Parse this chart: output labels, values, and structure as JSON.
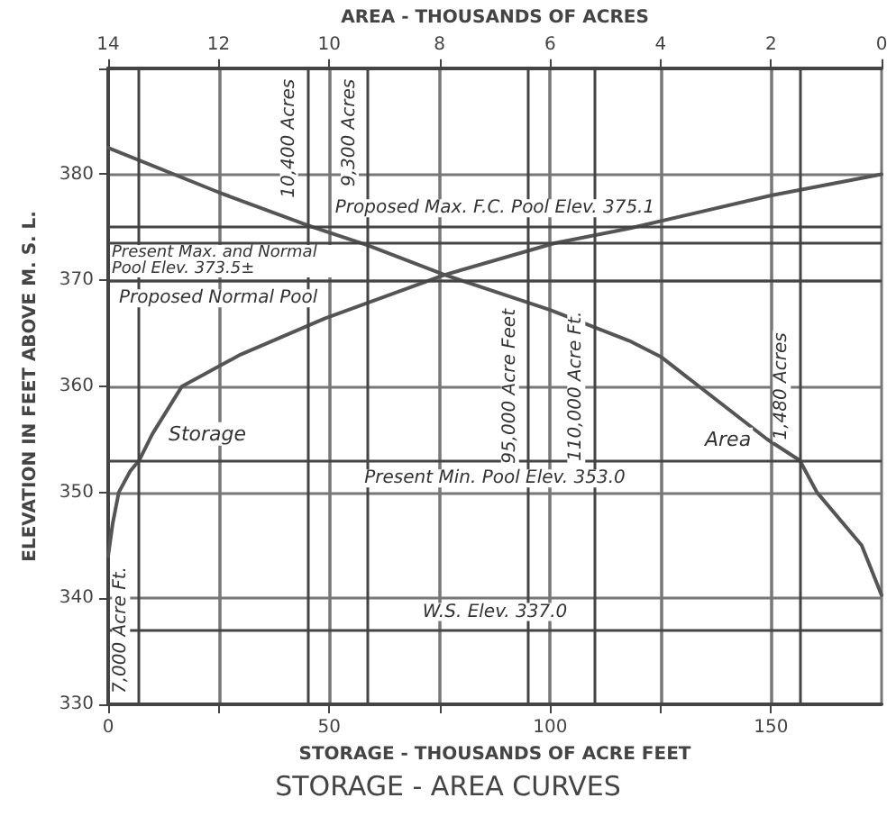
{
  "chart_data": {
    "type": "line",
    "title": "STORAGE - AREA CURVES",
    "xlabel": "STORAGE - THOUSANDS OF ACRE FEET",
    "x2label": "AREA - THOUSANDS OF ACRES",
    "ylabel": "ELEVATION IN FEET ABOVE M. S. L.",
    "series": [
      {
        "name": "Storage",
        "color": "#555555",
        "x": [
          0,
          1,
          2.4,
          5,
          7,
          10,
          16.7,
          30,
          49,
          76,
          101,
          118,
          150,
          175
        ],
        "values": [
          344,
          347,
          350,
          352,
          353,
          355.5,
          360,
          363,
          366.4,
          370.5,
          373.5,
          374.9,
          378,
          380
        ]
      },
      {
        "name": "Area",
        "color": "#555555",
        "axis": "x2",
        "x": [
          14,
          12,
          10.4,
          9.3,
          7.9,
          6,
          4.57,
          4,
          2.07,
          1.48,
          1.17,
          0.36,
          0
        ],
        "values": [
          382.5,
          378.3,
          375.2,
          373.3,
          370.5,
          367.2,
          364.3,
          362.8,
          355,
          353,
          350,
          345,
          340.3
        ]
      }
    ],
    "xlim": [
      0,
      175
    ],
    "xticks": [
      0,
      {
        "value": 25,
        "label": null
      },
      50,
      {
        "value": 75,
        "label": null
      },
      100,
      {
        "value": 125,
        "label": null
      },
      150
    ],
    "x2lim": [
      14,
      0
    ],
    "x2ticks": [
      14,
      12,
      10,
      8,
      6,
      4,
      2,
      0
    ],
    "ylim": [
      330,
      390
    ],
    "yticks": [
      330,
      340,
      350,
      360,
      370,
      380,
      {
        "value": 390,
        "label": null
      }
    ],
    "ref_lines": [
      {
        "axis": "y",
        "value": 375.1,
        "label": "Proposed Max. F.C. Pool Elev. 375.1"
      },
      {
        "axis": "y",
        "value": 373.5,
        "label": "Present Max. and Normal Pool Elev. 373.5±"
      },
      {
        "axis": "y",
        "value": 370,
        "label": "Proposed Normal Pool"
      },
      {
        "axis": "y",
        "value": 353,
        "label": "Present Min. Pool Elev. 353.0"
      },
      {
        "axis": "y",
        "value": 337,
        "label": "W.S. Elev. 337.0"
      },
      {
        "axis": "x2",
        "value": 10.4,
        "label": "10,400 Acres"
      },
      {
        "axis": "x2",
        "value": 9.3,
        "label": "9,300 Acres"
      },
      {
        "axis": "x",
        "value": 95,
        "label": "95,000 Acre Feet"
      },
      {
        "axis": "x",
        "value": 110,
        "label": "110,000 Acre Ft."
      },
      {
        "axis": "x2",
        "value": 1.48,
        "label": "1,480 Acres"
      },
      {
        "axis": "x",
        "value": 7,
        "label": "7,000 Acre Ft."
      }
    ],
    "grid": true,
    "marker": "none",
    "line_style": "solid",
    "legend": false
  }
}
